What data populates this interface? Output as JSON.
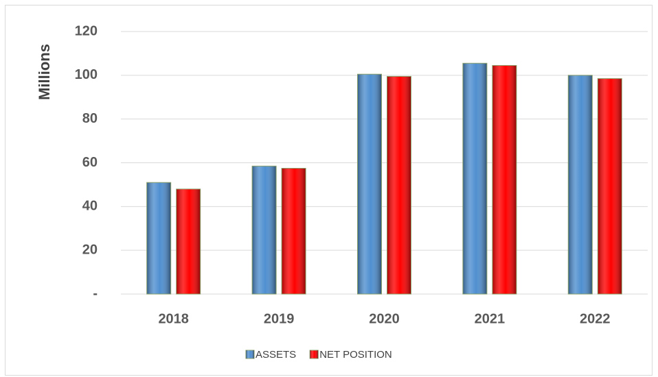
{
  "chart_data": {
    "type": "bar",
    "y_label": "Millions",
    "categories": [
      "2018",
      "2019",
      "2020",
      "2021",
      "2022"
    ],
    "series": [
      {
        "name": "ASSETS",
        "color": "#4f8fd0",
        "values": [
          51,
          58.5,
          100.5,
          105.5,
          100
        ]
      },
      {
        "name": "NET POSITION",
        "color": "#ff0000",
        "values": [
          48,
          57.5,
          99.5,
          104.5,
          98.5
        ]
      }
    ],
    "ylim": [
      0,
      120
    ],
    "yticks": [
      {
        "value": 0,
        "label": "-"
      },
      20,
      40,
      60,
      80,
      100,
      120
    ],
    "grid": true,
    "legend": "bottom"
  }
}
